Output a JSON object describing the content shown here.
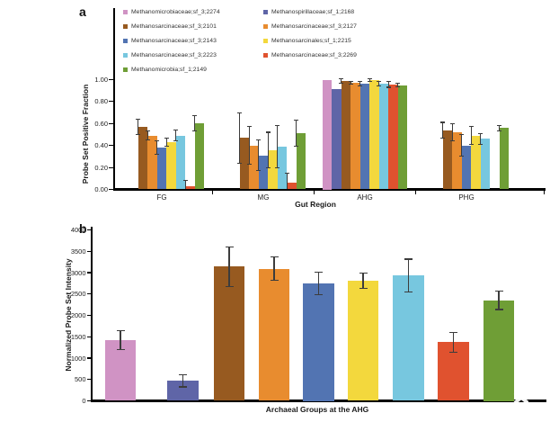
{
  "panels": {
    "a": {
      "letter": "a"
    },
    "b": {
      "letter": "b"
    }
  },
  "watermark": {
    "color": "#ffffff"
  },
  "chart_data": [
    {
      "id": "a",
      "type": "bar",
      "title": "",
      "xlabel": "Gut Region",
      "ylabel": "Probe Set Positive Fraction",
      "categories": [
        "FG",
        "MG",
        "AHG",
        "PHG"
      ],
      "ylim": [
        0,
        1.0
      ],
      "ytick_step": 0.2,
      "yticks": [
        "0.00",
        "0.20",
        "0.40",
        "0.60",
        "0.80",
        "1.00"
      ],
      "grid": false,
      "legend_position": "top",
      "legend_columns": 2,
      "series": [
        {
          "name": "Methanomicrobiaceae;sf_3;2274",
          "color": "#d093c4",
          "values": [
            null,
            null,
            1.0,
            null
          ],
          "errors": [
            null,
            null,
            0,
            null
          ]
        },
        {
          "name": "Methanospirillaceae;sf_1;2168",
          "color": "#5f65a7",
          "values": [
            null,
            null,
            0.91,
            null
          ],
          "errors": [
            null,
            null,
            0,
            null
          ]
        },
        {
          "name": "Methanosarcinaceae;sf_3;2101",
          "color": "#975a20",
          "values": [
            0.57,
            0.47,
            0.99,
            0.54
          ],
          "errors": [
            0.07,
            0.23,
            0.02,
            0.07
          ]
        },
        {
          "name": "Methanosarcinaceae;sf_3;2127",
          "color": "#e88c2f",
          "values": [
            0.49,
            0.4,
            0.97,
            0.52
          ],
          "errors": [
            0.04,
            0.17,
            0.015,
            0.08
          ]
        },
        {
          "name": "Methanosarcinaceae;sf_3;2143",
          "color": "#5274b2",
          "values": [
            0.38,
            0.31,
            0.96,
            0.4
          ],
          "errors": [
            0.06,
            0.14,
            0.02,
            0.1
          ]
        },
        {
          "name": "Methanosarcinales;sf_1;2215",
          "color": "#f3d83d",
          "values": [
            0.43,
            0.36,
            0.995,
            0.49
          ],
          "errors": [
            0.04,
            0.16,
            0.01,
            0.08
          ]
        },
        {
          "name": "Methanosarcinaceae;sf_3;2223",
          "color": "#77c7df",
          "values": [
            0.49,
            0.39,
            0.96,
            0.46
          ],
          "errors": [
            0.05,
            0.19,
            0.02,
            0.05
          ]
        },
        {
          "name": "Methanosarcinaceae;sf_3;2269",
          "color": "#e0522f",
          "values": [
            0.03,
            0.06,
            0.955,
            null
          ],
          "errors": [
            0.05,
            0.09,
            0.025,
            null
          ]
        },
        {
          "name": "Methanomicrobia;sf_1;2149",
          "color": "#6f9e36",
          "values": [
            0.6,
            0.51,
            0.95,
            0.56
          ],
          "errors": [
            0.07,
            0.12,
            0.015,
            0.025
          ]
        }
      ]
    },
    {
      "id": "b",
      "type": "bar",
      "title": "",
      "xlabel": "Archaeal Groups at the AHG",
      "ylabel": "Normalized Probe Set Intensity",
      "categories": [
        "Methanomicrobiaceae;sf_3;2274",
        "Methanospirillaceae;sf_1;2168",
        "Methanosarcinaceae;sf_3;2101",
        "Methanosarcinaceae;sf_3;2127",
        "Methanosarcinaceae;sf_3;2143",
        "Methanosarcinales;sf_1;2215",
        "Methanosarcinaceae;sf_3;2223",
        "Methanosarcinaceae;sf_3;2269",
        "Methanomicrobia;sf_1;2149"
      ],
      "colors": [
        "#d093c4",
        "#5f65a7",
        "#975a20",
        "#e88c2f",
        "#5274b2",
        "#f3d83d",
        "#77c7df",
        "#e0522f",
        "#6f9e36"
      ],
      "values": [
        1420,
        470,
        3140,
        3090,
        2750,
        2810,
        2930,
        1370,
        2350
      ],
      "errors": [
        225,
        145,
        460,
        270,
        265,
        180,
        385,
        235,
        215
      ],
      "ylim": [
        0,
        4000
      ],
      "ytick_step": 500,
      "yticks": [
        "0",
        "500",
        "1000",
        "1500",
        "2000",
        "2500",
        "3000",
        "3500",
        "4000"
      ],
      "grid": false,
      "legend_position": "none"
    }
  ]
}
